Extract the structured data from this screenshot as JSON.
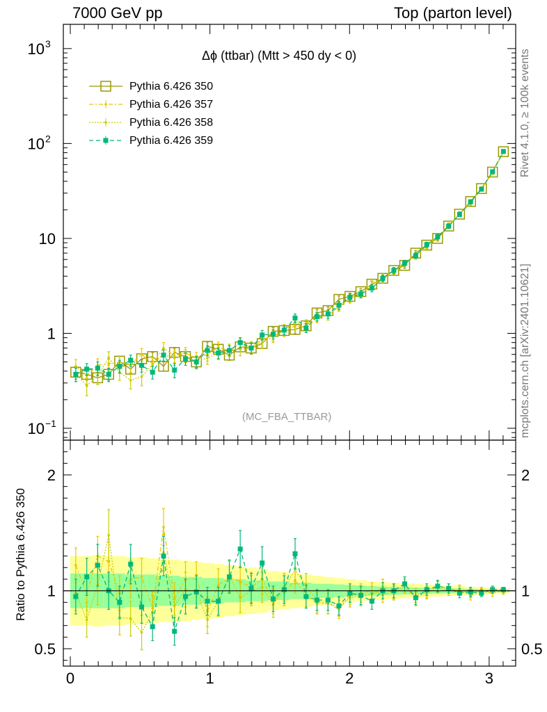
{
  "header": {
    "left": "7000 GeV pp",
    "right": "Top (parton level)"
  },
  "side_text": {
    "rivet": "Rivet 4.1.0, ≥ 100k events",
    "mcplots": "mcplots.cern.ch [arXiv:2401.10621]"
  },
  "colors": {
    "s350": "#999900",
    "s357": "#e6c800",
    "s358": "#cccc00",
    "s359": "#00b87a",
    "band_outer": "#ffff99",
    "band_inner": "#99ff99"
  },
  "chart_data": [
    {
      "type": "line",
      "panel": "main",
      "title": "Δϕ (ttbar) (Mtt > 450 dy < 0)",
      "watermark": "(MC_FBA_TTBAR)",
      "yscale": "log",
      "xlim": [
        -0.05,
        3.19
      ],
      "ylim": [
        0.075,
        1800
      ],
      "yticks_major": [
        {
          "value": 0.1,
          "label": "10",
          "exp": "−1"
        },
        {
          "value": 1,
          "label": "1",
          "exp": ""
        },
        {
          "value": 10,
          "label": "10",
          "exp": ""
        },
        {
          "value": 100,
          "label": "10",
          "exp": "2"
        },
        {
          "value": 1000,
          "label": "10",
          "exp": "3"
        }
      ],
      "x": [
        0.039,
        0.118,
        0.196,
        0.275,
        0.353,
        0.432,
        0.511,
        0.589,
        0.668,
        0.746,
        0.825,
        0.903,
        0.982,
        1.06,
        1.139,
        1.217,
        1.296,
        1.374,
        1.453,
        1.532,
        1.61,
        1.689,
        1.767,
        1.846,
        1.924,
        2.003,
        2.081,
        2.16,
        2.238,
        2.317,
        2.395,
        2.474,
        2.553,
        2.631,
        2.71,
        2.788,
        2.867,
        2.945,
        3.024,
        3.102
      ],
      "legend": [
        {
          "name": "Pythia 6.426 350",
          "key": "s350"
        },
        {
          "name": "Pythia 6.426 357",
          "key": "s357"
        },
        {
          "name": "Pythia 6.426 358",
          "key": "s358"
        },
        {
          "name": "Pythia 6.426 359",
          "key": "s359"
        }
      ],
      "series": [
        {
          "name": "Pythia 6.426 350",
          "key": "s350",
          "marker": "open-square",
          "dash": "",
          "values": [
            0.39,
            0.37,
            0.34,
            0.37,
            0.51,
            0.42,
            0.54,
            0.57,
            0.45,
            0.63,
            0.57,
            0.5,
            0.73,
            0.68,
            0.59,
            0.72,
            0.7,
            0.78,
            1.05,
            1.07,
            1.1,
            1.2,
            1.64,
            1.74,
            2.28,
            2.45,
            2.75,
            3.3,
            3.8,
            4.6,
            5.2,
            7.0,
            8.5,
            10.0,
            13.5,
            18.0,
            24.5,
            33.5,
            50.0,
            82.0
          ],
          "err": [
            0.06,
            0.05,
            0.05,
            0.05,
            0.06,
            0.05,
            0.06,
            0.06,
            0.05,
            0.07,
            0.07,
            0.06,
            0.08,
            0.07,
            0.07,
            0.08,
            0.08,
            0.08,
            0.1,
            0.1,
            0.11,
            0.12,
            0.15,
            0.16,
            0.2,
            0.2,
            0.22,
            0.25,
            0.28,
            0.32,
            0.36,
            0.45,
            0.5,
            0.6,
            0.7,
            0.9,
            1.1,
            1.4,
            1.9,
            2.8
          ]
        },
        {
          "name": "Pythia 6.426 357",
          "key": "s357",
          "marker": "dot",
          "dash": "6,3,2,3",
          "values": [
            0.45,
            0.36,
            0.46,
            0.48,
            0.5,
            0.47,
            0.6,
            0.48,
            0.7,
            0.58,
            0.62,
            0.55,
            0.6,
            0.71,
            0.66,
            0.78,
            0.72,
            0.85,
            0.95,
            1.05,
            1.2,
            1.15,
            1.45,
            1.55,
            1.9,
            2.35,
            2.7,
            3.3,
            3.7,
            4.55,
            5.4,
            6.5,
            8.4,
            10.4,
            13.8,
            18.0,
            23.5,
            33.0,
            49.0,
            82.0
          ],
          "err": [
            0.08,
            0.07,
            0.08,
            0.08,
            0.08,
            0.08,
            0.09,
            0.08,
            0.1,
            0.09,
            0.09,
            0.08,
            0.09,
            0.1,
            0.09,
            0.1,
            0.1,
            0.11,
            0.12,
            0.13,
            0.14,
            0.13,
            0.16,
            0.17,
            0.2,
            0.22,
            0.24,
            0.28,
            0.3,
            0.35,
            0.4,
            0.45,
            0.55,
            0.65,
            0.8,
            1.0,
            1.2,
            1.5,
            2.0,
            3.0
          ]
        },
        {
          "name": "Pythia 6.426 358",
          "key": "s358",
          "marker": "dot",
          "dash": "2,2",
          "values": [
            0.38,
            0.28,
            0.36,
            0.55,
            0.39,
            0.32,
            0.35,
            0.47,
            0.6,
            0.55,
            0.58,
            0.5,
            0.55,
            0.62,
            0.67,
            0.68,
            0.7,
            0.8,
            0.92,
            1.1,
            1.3,
            1.25,
            1.5,
            1.55,
            1.95,
            2.3,
            2.6,
            3.2,
            3.9,
            4.5,
            5.4,
            6.7,
            8.3,
            10.3,
            13.5,
            18.2,
            24.0,
            33.5,
            50.5,
            81.0
          ],
          "err": [
            0.07,
            0.06,
            0.07,
            0.09,
            0.07,
            0.06,
            0.07,
            0.08,
            0.09,
            0.09,
            0.09,
            0.08,
            0.08,
            0.09,
            0.1,
            0.1,
            0.1,
            0.11,
            0.12,
            0.14,
            0.15,
            0.14,
            0.17,
            0.17,
            0.2,
            0.22,
            0.24,
            0.28,
            0.32,
            0.35,
            0.4,
            0.47,
            0.55,
            0.65,
            0.8,
            1.0,
            1.2,
            1.5,
            2.0,
            3.0
          ]
        },
        {
          "name": "Pythia 6.426 359",
          "key": "s359",
          "marker": "filled-square",
          "dash": "6,4",
          "values": [
            0.37,
            0.42,
            0.43,
            0.37,
            0.45,
            0.52,
            0.46,
            0.39,
            0.59,
            0.41,
            0.54,
            0.5,
            0.66,
            0.62,
            0.66,
            0.8,
            0.7,
            0.96,
            0.98,
            1.08,
            1.45,
            1.14,
            1.5,
            1.6,
            1.98,
            2.4,
            2.6,
            3.0,
            3.8,
            4.6,
            5.5,
            6.6,
            8.6,
            10.4,
            13.5,
            17.9,
            24.3,
            33.0,
            50.4,
            82.5
          ],
          "err": [
            0.06,
            0.06,
            0.07,
            0.06,
            0.07,
            0.07,
            0.07,
            0.06,
            0.08,
            0.07,
            0.08,
            0.07,
            0.08,
            0.08,
            0.08,
            0.1,
            0.09,
            0.11,
            0.11,
            0.12,
            0.15,
            0.12,
            0.15,
            0.16,
            0.19,
            0.21,
            0.23,
            0.26,
            0.3,
            0.34,
            0.38,
            0.44,
            0.52,
            0.62,
            0.75,
            0.95,
            1.15,
            1.45,
            1.9,
            2.8
          ]
        }
      ]
    },
    {
      "type": "line",
      "panel": "ratio",
      "ylabel": "Ratio to Pythia 6.426 350",
      "xlabel": "",
      "xlim": [
        -0.05,
        3.19
      ],
      "ylim": [
        0.35,
        2.3
      ],
      "xticks": [
        0,
        1,
        2,
        3
      ],
      "yticks_major": [
        0.5,
        1,
        2
      ],
      "band": {
        "outer_half_width": [
          0.3,
          0.3,
          0.31,
          0.3,
          0.3,
          0.29,
          0.29,
          0.28,
          0.27,
          0.27,
          0.26,
          0.25,
          0.24,
          0.23,
          0.22,
          0.21,
          0.2,
          0.19,
          0.17,
          0.16,
          0.15,
          0.14,
          0.13,
          0.12,
          0.11,
          0.1,
          0.09,
          0.08,
          0.075,
          0.07,
          0.065,
          0.06,
          0.055,
          0.05,
          0.045,
          0.04,
          0.035,
          0.03,
          0.025,
          0.02
        ],
        "inner_half_width": [
          0.15,
          0.15,
          0.15,
          0.15,
          0.15,
          0.14,
          0.14,
          0.14,
          0.13,
          0.13,
          0.12,
          0.12,
          0.11,
          0.11,
          0.1,
          0.1,
          0.09,
          0.09,
          0.08,
          0.08,
          0.07,
          0.07,
          0.06,
          0.06,
          0.055,
          0.05,
          0.045,
          0.04,
          0.037,
          0.034,
          0.031,
          0.028,
          0.025,
          0.022,
          0.02,
          0.018,
          0.016,
          0.014,
          0.012,
          0.01
        ]
      },
      "series": [
        {
          "key": "s350",
          "values": [
            1,
            1,
            1,
            1,
            1,
            1,
            1,
            1,
            1,
            1,
            1,
            1,
            1,
            1,
            1,
            1,
            1,
            1,
            1,
            1,
            1,
            1,
            1,
            1,
            1,
            1,
            1,
            1,
            1,
            1,
            1,
            1,
            1,
            1,
            1,
            1,
            1,
            1,
            1,
            1
          ],
          "err": [
            0,
            0,
            0,
            0,
            0,
            0,
            0,
            0,
            0,
            0,
            0,
            0,
            0,
            0,
            0,
            0,
            0,
            0,
            0,
            0,
            0,
            0,
            0,
            0,
            0,
            0,
            0,
            0,
            0,
            0,
            0,
            0,
            0,
            0,
            0,
            0,
            0,
            0,
            0,
            0
          ]
        },
        {
          "key": "s357",
          "values": [
            1.22,
            0.98,
            1.3,
            1.25,
            0.98,
            1.1,
            1.12,
            0.85,
            1.55,
            0.93,
            1.1,
            1.1,
            0.82,
            1.05,
            1.12,
            1.08,
            1.03,
            1.1,
            0.91,
            0.98,
            1.09,
            0.96,
            0.89,
            0.89,
            0.84,
            0.96,
            0.98,
            1.0,
            0.97,
            0.99,
            1.04,
            0.93,
            0.99,
            1.04,
            1.02,
            1.0,
            0.96,
            0.99,
            0.98,
            1.0
          ],
          "err": [
            0.15,
            0.15,
            0.17,
            0.17,
            0.15,
            0.16,
            0.16,
            0.14,
            0.16,
            0.14,
            0.15,
            0.15,
            0.13,
            0.14,
            0.14,
            0.13,
            0.13,
            0.13,
            0.11,
            0.11,
            0.11,
            0.1,
            0.09,
            0.09,
            0.08,
            0.08,
            0.08,
            0.07,
            0.07,
            0.06,
            0.06,
            0.06,
            0.05,
            0.05,
            0.04,
            0.04,
            0.04,
            0.03,
            0.03,
            0.02
          ]
        },
        {
          "key": "s358",
          "values": [
            0.98,
            0.75,
            1.05,
            1.48,
            0.77,
            0.76,
            0.64,
            0.82,
            1.33,
            0.87,
            1.01,
            1.0,
            0.75,
            0.91,
            1.13,
            0.94,
            1.0,
            1.03,
            0.88,
            1.03,
            1.18,
            1.04,
            0.91,
            0.89,
            0.86,
            0.94,
            0.95,
            0.97,
            1.03,
            0.98,
            1.04,
            0.96,
            0.98,
            1.03,
            1.0,
            1.01,
            0.98,
            1.0,
            1.01,
            0.99
          ],
          "err": [
            0.15,
            0.15,
            0.17,
            0.22,
            0.15,
            0.15,
            0.15,
            0.14,
            0.16,
            0.14,
            0.15,
            0.14,
            0.12,
            0.13,
            0.14,
            0.13,
            0.13,
            0.13,
            0.11,
            0.12,
            0.12,
            0.11,
            0.1,
            0.09,
            0.08,
            0.08,
            0.08,
            0.07,
            0.07,
            0.06,
            0.06,
            0.06,
            0.05,
            0.05,
            0.04,
            0.04,
            0.04,
            0.03,
            0.03,
            0.02
          ]
        },
        {
          "key": "s359",
          "values": [
            0.95,
            1.12,
            1.22,
            1.0,
            0.9,
            1.23,
            0.86,
            0.69,
            1.3,
            0.65,
            0.95,
            0.99,
            0.91,
            0.91,
            1.12,
            1.36,
            1.02,
            1.24,
            0.93,
            1.01,
            1.32,
            0.95,
            0.92,
            0.92,
            0.87,
            0.98,
            0.96,
            0.91,
            1.0,
            1.0,
            1.06,
            0.94,
            1.01,
            1.04,
            1.02,
            0.98,
            0.99,
            0.98,
            1.01,
            1.01
          ],
          "err": [
            0.15,
            0.16,
            0.18,
            0.16,
            0.14,
            0.17,
            0.14,
            0.12,
            0.17,
            0.12,
            0.15,
            0.14,
            0.12,
            0.12,
            0.14,
            0.16,
            0.13,
            0.14,
            0.11,
            0.12,
            0.13,
            0.1,
            0.09,
            0.09,
            0.08,
            0.08,
            0.08,
            0.07,
            0.07,
            0.06,
            0.06,
            0.06,
            0.05,
            0.05,
            0.04,
            0.04,
            0.04,
            0.03,
            0.03,
            0.02
          ]
        }
      ]
    }
  ]
}
